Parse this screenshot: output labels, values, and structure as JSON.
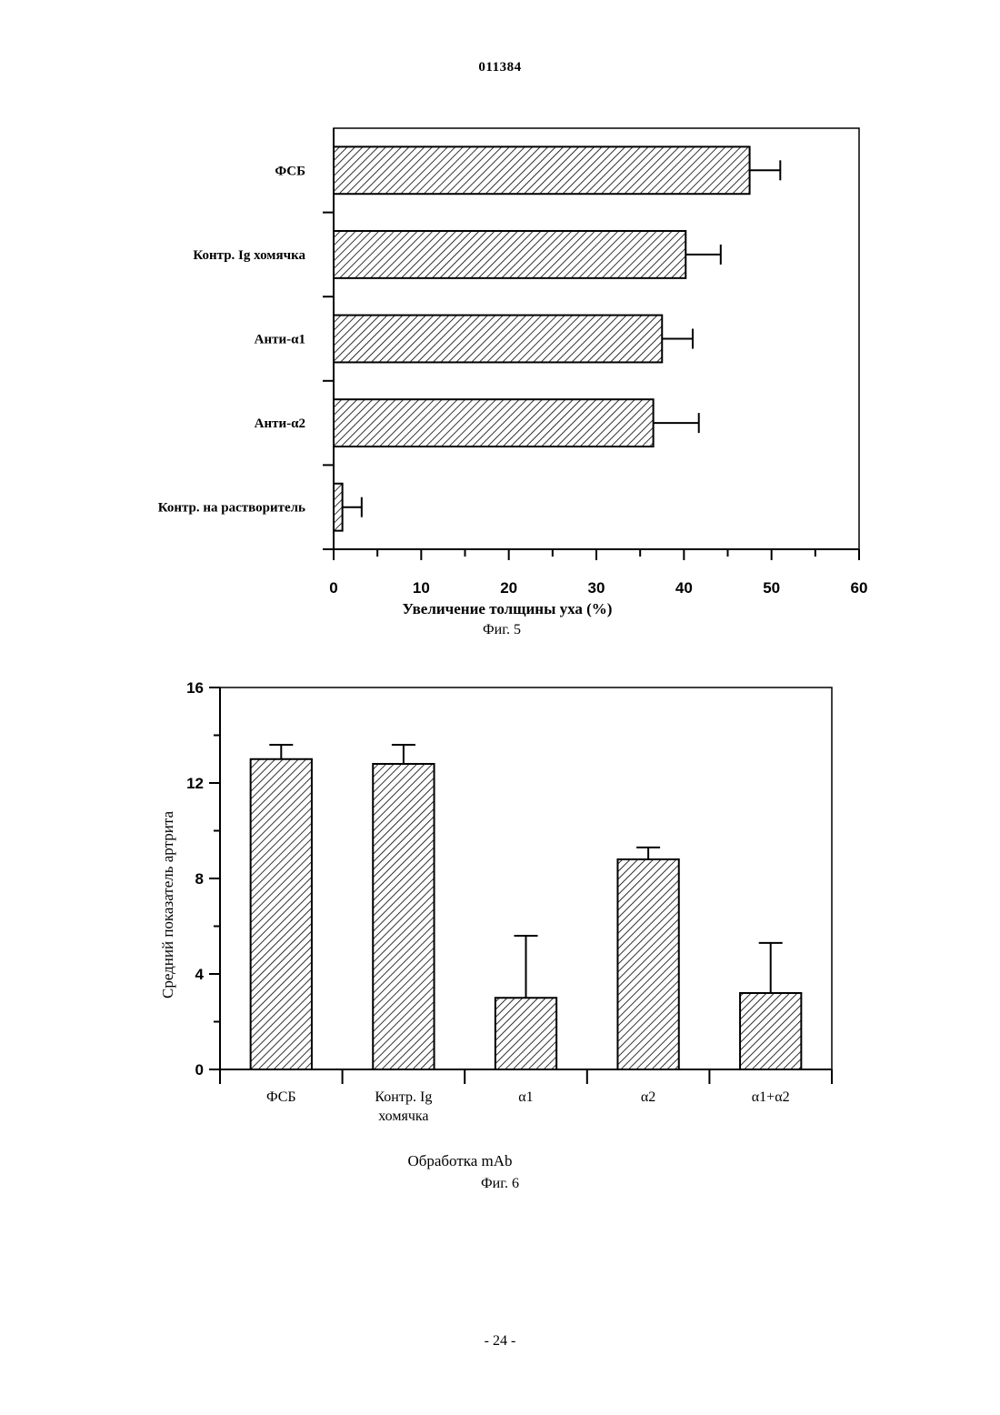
{
  "header": {
    "doc_number": "011384"
  },
  "footer": {
    "page": "- 24 -"
  },
  "chart_data": [
    {
      "type": "bar",
      "orientation": "horizontal",
      "categories": [
        "ФСБ",
        "Контр. Ig хомячка",
        "Анти-α1",
        "Анти-α2",
        "Контр. на растворитель"
      ],
      "values": [
        47.5,
        40.2,
        37.5,
        36.5,
        1.0
      ],
      "errors": [
        3.5,
        4.0,
        3.5,
        5.2,
        2.2
      ],
      "xlabel": "Увеличение толщины уха (%)",
      "xlim": [
        0,
        60
      ],
      "xticks": [
        "0",
        "10",
        "20",
        "30",
        "40",
        "50",
        "60"
      ],
      "caption": "Фиг. 5"
    },
    {
      "type": "bar",
      "orientation": "vertical",
      "categories": [
        "ФСБ",
        "Контр. Ig хомячка",
        "α1",
        "α2",
        "α1+α2"
      ],
      "values": [
        13.0,
        12.8,
        3.0,
        8.8,
        3.2
      ],
      "errors": [
        0.6,
        0.8,
        2.6,
        0.5,
        2.1
      ],
      "xlabel": "Обработка mAb",
      "ylabel": "Средний показатель артрита",
      "ylim": [
        0,
        16
      ],
      "yticks": [
        "0",
        "4",
        "8",
        "12",
        "16"
      ],
      "caption": "Фиг. 6"
    }
  ]
}
